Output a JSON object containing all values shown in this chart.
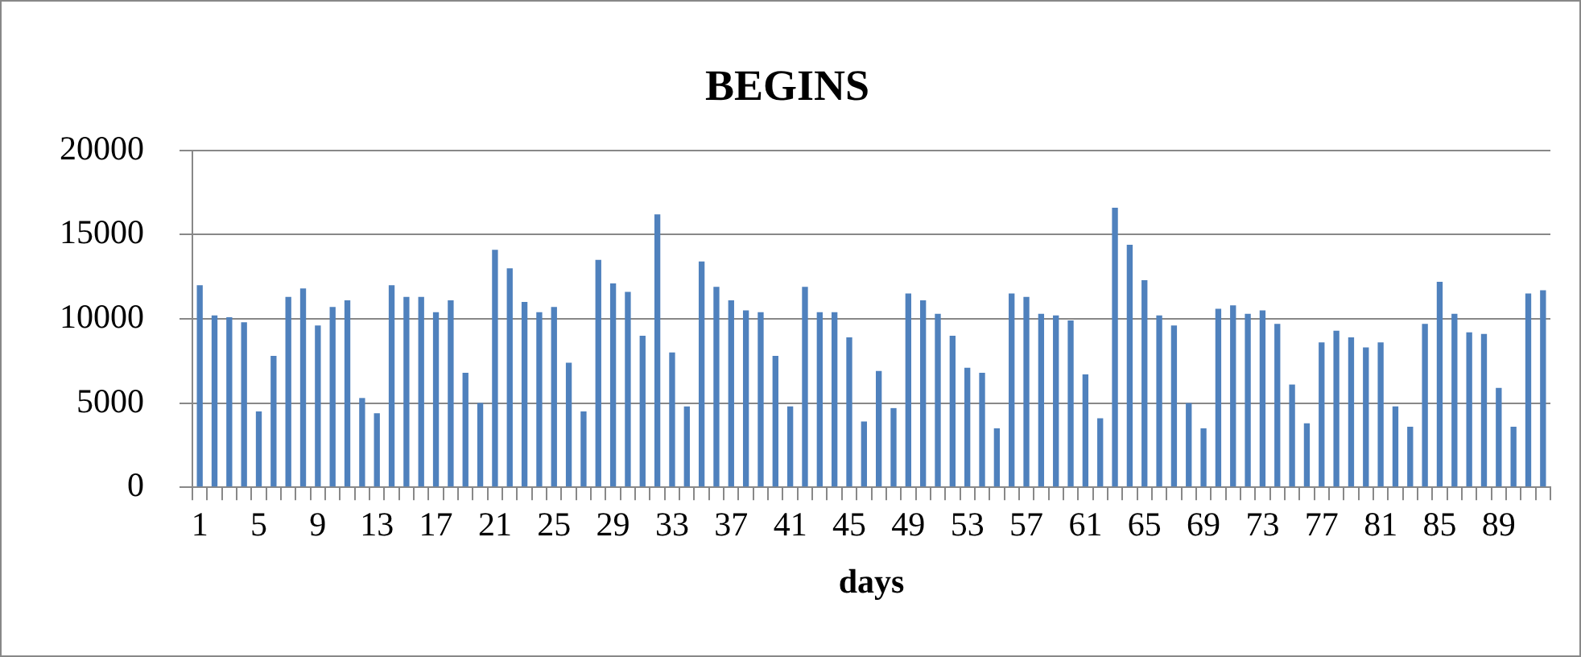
{
  "chart_data": {
    "type": "bar",
    "title": "BEGINS",
    "xlabel": "days",
    "categories": [
      "1",
      null,
      null,
      null,
      "5",
      null,
      null,
      null,
      "9",
      null,
      null,
      null,
      "13",
      null,
      null,
      null,
      "17",
      null,
      null,
      null,
      "21",
      null,
      null,
      null,
      "25",
      null,
      null,
      null,
      "29",
      null,
      null,
      null,
      "33",
      null,
      null,
      null,
      "37",
      null,
      null,
      null,
      "41",
      null,
      null,
      null,
      "45",
      null,
      null,
      null,
      "49",
      null,
      null,
      null,
      "53",
      null,
      null,
      null,
      "57",
      null,
      null,
      null,
      "61",
      null,
      null,
      null,
      "65",
      null,
      null,
      null,
      "69",
      null,
      null,
      null,
      "73",
      null,
      null,
      null,
      "77",
      null,
      null,
      null,
      "81",
      null,
      null,
      null,
      "85",
      null,
      null,
      null,
      "89",
      null,
      null,
      null
    ],
    "values": [
      12000,
      10200,
      10100,
      9800,
      4500,
      7800,
      11300,
      11800,
      9600,
      10700,
      11100,
      5300,
      4400,
      12000,
      11300,
      11300,
      10400,
      11100,
      6800,
      5000,
      14100,
      13000,
      11000,
      10400,
      10700,
      7400,
      4500,
      13500,
      12100,
      11600,
      9000,
      16200,
      8000,
      4800,
      13400,
      11900,
      11100,
      10500,
      10400,
      7800,
      4800,
      11900,
      10400,
      10400,
      8900,
      3900,
      6900,
      4700,
      11500,
      11100,
      10300,
      9000,
      7100,
      6800,
      3500,
      11500,
      11300,
      10300,
      10200,
      9900,
      6700,
      4100,
      16600,
      14400,
      12300,
      10200,
      9600,
      5000,
      3500,
      10600,
      10800,
      10300,
      10500,
      9700,
      6100,
      3800,
      8600,
      9300,
      8900,
      8300,
      8600,
      4800,
      3600,
      9700,
      12200,
      10300,
      9200,
      9100,
      5900,
      3600,
      11500,
      11700
    ],
    "color": "#4f81bd",
    "ylim": [
      0,
      20000
    ],
    "yticks": [
      0,
      5000,
      10000,
      15000,
      20000
    ],
    "grid": "y"
  }
}
